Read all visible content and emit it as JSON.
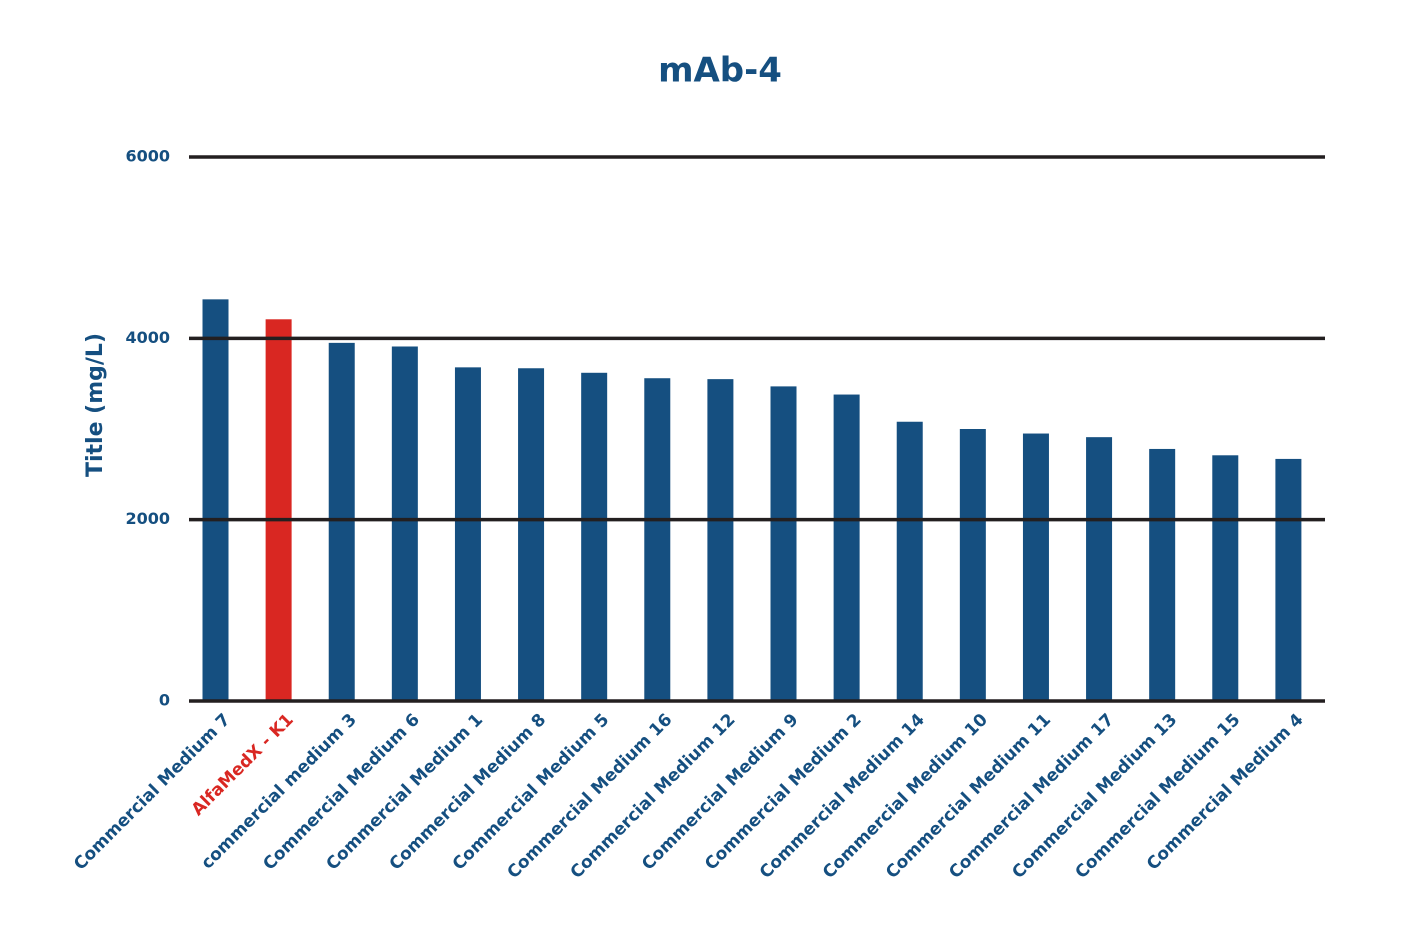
{
  "chart_data": {
    "type": "bar",
    "title": "mAb-4",
    "y_label": "Title (mg/L)",
    "categories": [
      "Commercial Medium 7",
      "AlfaMedX - K1",
      "commercial medium 3",
      "Commercial Medium 6",
      "Commercial Medium 1",
      "Commercial Medium 8",
      "Commercial Medium 5",
      "Commercial Medium 16",
      "Commercial Medium 12",
      "Commercial Medium 9",
      "Commercial Medium 2",
      "Commercial Medium 14",
      "Commercial Medium 10",
      "Commercial Medium 11",
      "Commercial Medium 17",
      "Commercial Medium 13",
      "Commercial Medium 15",
      "Commercial Medium 4"
    ],
    "values": [
      4430,
      4210,
      3950,
      3910,
      3680,
      3670,
      3620,
      3560,
      3550,
      3470,
      3380,
      3080,
      3000,
      2950,
      2910,
      2780,
      2710,
      2670
    ],
    "colors": [
      "#154f80",
      "#d92722",
      "#154f80",
      "#154f80",
      "#154f80",
      "#154f80",
      "#154f80",
      "#154f80",
      "#154f80",
      "#154f80",
      "#154f80",
      "#154f80",
      "#154f80",
      "#154f80",
      "#154f80",
      "#154f80",
      "#154f80",
      "#154f80"
    ],
    "ylim": [
      0,
      6000
    ],
    "yticks": [
      0,
      2000,
      4000,
      6000
    ],
    "grid": true
  }
}
